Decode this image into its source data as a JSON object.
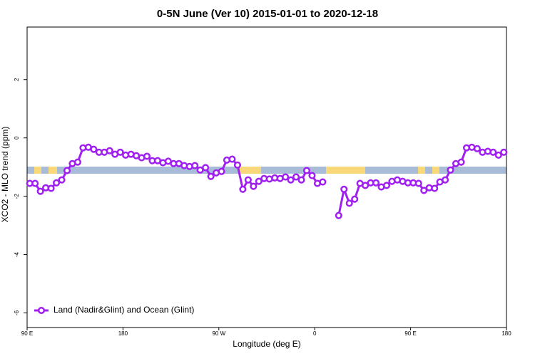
{
  "chart_data": {
    "type": "line",
    "title": "0-5N June (Ver 10)   2015-01-01 to 2020-12-18",
    "x_label": "Longitude (deg E)",
    "y_label": "XCO2 - MLO trend (ppm)",
    "xlim": [
      90,
      540
    ],
    "ylim": [
      -6.5,
      3.8
    ],
    "xticks": [
      {
        "value": 90,
        "label": "90 E"
      },
      {
        "value": 180,
        "label": "180"
      },
      {
        "value": 270,
        "label": "90 W"
      },
      {
        "value": 360,
        "label": "0"
      },
      {
        "value": 450,
        "label": "90 E"
      },
      {
        "value": 540,
        "label": "180"
      }
    ],
    "yticks": [
      2,
      0,
      -2,
      -4,
      -6
    ],
    "legend": "bottom-left",
    "x": [
      92.5,
      97.5,
      102.5,
      107.5,
      112.5,
      117.5,
      122.5,
      127.5,
      132.5,
      137.5,
      142.5,
      147.5,
      152.5,
      157.5,
      162.5,
      167.5,
      172.5,
      177.5,
      182.5,
      187.5,
      192.5,
      197.5,
      202.5,
      207.5,
      212.5,
      217.5,
      222.5,
      227.5,
      232.5,
      237.5,
      242.5,
      247.5,
      252.5,
      257.5,
      262.5,
      267.5,
      272.5,
      277.5,
      282.5,
      287.5,
      292.5,
      297.5,
      302.5,
      307.5,
      312.5,
      317.5,
      322.5,
      327.5,
      332.5,
      337.5,
      342.5,
      347.5,
      352.5,
      357.5,
      362.5,
      367.5,
      372.5,
      377.5,
      382.5,
      387.5,
      392.5,
      397.5,
      402.5,
      407.5,
      412.5,
      417.5,
      422.5,
      427.5,
      432.5,
      437.5,
      442.5,
      447.5,
      452.5,
      457.5,
      462.5,
      467.5,
      472.5,
      477.5,
      482.5,
      487.5,
      492.5,
      497.5,
      502.5,
      507.5,
      512.5,
      517.5,
      522.5,
      527.5,
      532.5,
      537.5
    ],
    "series": [
      {
        "name": "Land (Nadir&Glint) and Ocean (Glint)",
        "color": "#a020f0",
        "values": [
          -1.56,
          -1.56,
          -1.83,
          -1.71,
          -1.73,
          -1.54,
          -1.44,
          -1.12,
          -0.88,
          -0.83,
          -0.34,
          -0.32,
          -0.39,
          -0.49,
          -0.49,
          -0.44,
          -0.56,
          -0.49,
          -0.59,
          -0.56,
          -0.61,
          -0.68,
          -0.63,
          -0.78,
          -0.78,
          -0.85,
          -0.8,
          -0.88,
          -0.88,
          -0.95,
          -0.98,
          -0.95,
          -1.1,
          -1.02,
          -1.32,
          -1.2,
          -1.15,
          -0.76,
          -0.73,
          -0.93,
          -1.76,
          -1.44,
          -1.66,
          -1.49,
          -1.39,
          -1.41,
          -1.37,
          -1.39,
          -1.34,
          -1.44,
          -1.34,
          -1.44,
          -1.12,
          -1.29,
          -1.56,
          -1.51,
          null,
          null,
          -2.66,
          -1.76,
          -2.24,
          -2.1,
          -1.56,
          -1.63,
          -1.54,
          -1.54,
          -1.68,
          -1.63,
          -1.49,
          -1.44,
          -1.49,
          -1.54,
          -1.54,
          -1.56,
          -1.8,
          -1.71,
          -1.73,
          -1.51,
          -1.44,
          -1.1,
          -0.88,
          -0.83,
          -0.34,
          -0.32,
          -0.37,
          -0.49,
          -0.46,
          -0.49,
          -0.59,
          -0.49
        ]
      }
    ]
  }
}
